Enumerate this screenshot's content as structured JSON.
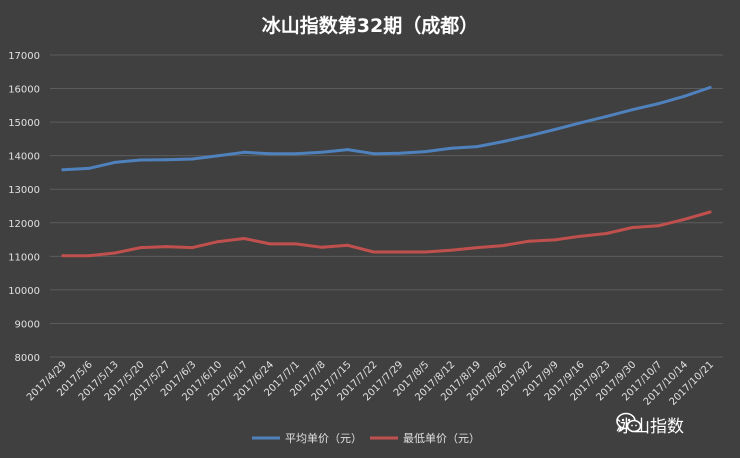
{
  "chart_data": {
    "type": "line",
    "title": "冰山指数第32期（成都）",
    "xlabel": "",
    "ylabel": "",
    "ylim": [
      8000,
      17000
    ],
    "yticks": [
      8000,
      9000,
      10000,
      11000,
      12000,
      13000,
      14000,
      15000,
      16000,
      17000
    ],
    "grid": true,
    "legend_position": "bottom",
    "categories": [
      "2017/4/29",
      "2017/5/6",
      "2017/5/13",
      "2017/5/20",
      "2017/5/27",
      "2017/6/3",
      "2017/6/10",
      "2017/6/17",
      "2017/6/24",
      "2017/7/1",
      "2017/7/8",
      "2017/7/15",
      "2017/7/22",
      "2017/7/29",
      "2017/8/5",
      "2017/8/12",
      "2017/8/19",
      "2017/8/26",
      "2017/9/2",
      "2017/9/9",
      "2017/9/16",
      "2017/9/23",
      "2017/9/30",
      "2017/10/7",
      "2017/10/14",
      "2017/10/21"
    ],
    "series": [
      {
        "name": "平均单价（元）",
        "color": "#4f81bd",
        "values": [
          13580,
          13620,
          13800,
          13870,
          13880,
          13900,
          14000,
          14100,
          14060,
          14060,
          14100,
          14180,
          14060,
          14070,
          14120,
          14220,
          14270,
          14420,
          14590,
          14780,
          14980,
          15170,
          15370,
          15550,
          15770,
          16030
        ]
      },
      {
        "name": "最低单价（元）",
        "color": "#c0504d",
        "values": [
          11020,
          11020,
          11100,
          11260,
          11290,
          11260,
          11440,
          11530,
          11370,
          11370,
          11270,
          11330,
          11130,
          11130,
          11130,
          11180,
          11260,
          11320,
          11450,
          11490,
          11600,
          11680,
          11860,
          11910,
          12100,
          12320
        ]
      }
    ]
  },
  "watermark": {
    "text": "冰山指数",
    "icon": "wechat-icon"
  }
}
